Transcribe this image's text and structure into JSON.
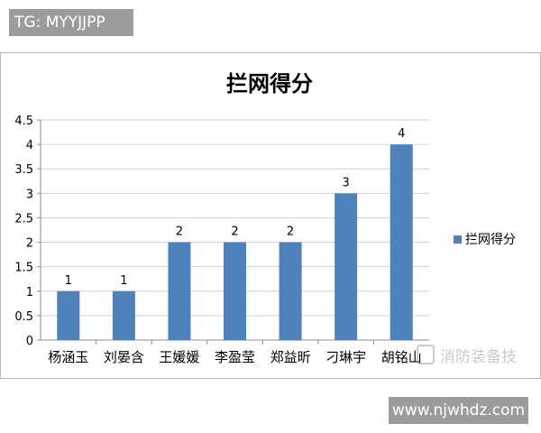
{
  "watermark_top": "TG: MYYJJPP",
  "watermark_bottom": "www.njwhdz.com",
  "watermark_brand": "消防装备技",
  "colors": {
    "bar": "#4f81bd",
    "gridline": "#d0d0d0",
    "axis": "#8c8c8c"
  },
  "chart_data": {
    "type": "bar",
    "title": "拦网得分",
    "xlabel": "",
    "ylabel": "",
    "categories": [
      "杨涵玉",
      "刘晏含",
      "王媛媛",
      "李盈莹",
      "郑益昕",
      "刁琳宇",
      "胡铭山"
    ],
    "series": [
      {
        "name": "拦网得分",
        "values": [
          1,
          1,
          2,
          2,
          2,
          3,
          4
        ]
      }
    ],
    "ylim": [
      0,
      4.5
    ],
    "yticks": [
      "0",
      "0.5",
      "1",
      "1.5",
      "2",
      "2.5",
      "3",
      "3.5",
      "4",
      "4.5"
    ],
    "data_labels": [
      "1",
      "1",
      "2",
      "2",
      "2",
      "3",
      "4"
    ],
    "grid": true,
    "legend_position": "right"
  }
}
